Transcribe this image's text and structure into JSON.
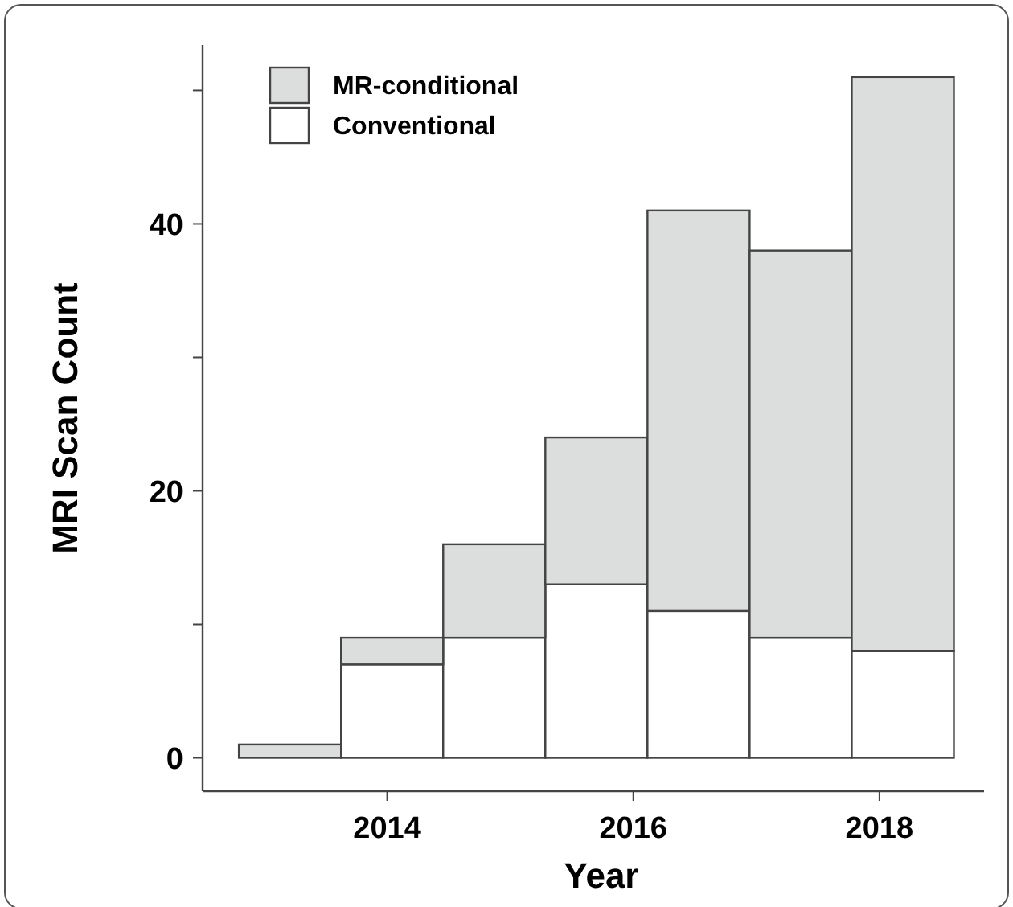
{
  "chart_data": {
    "type": "bar",
    "xlabel": "Year",
    "ylabel": "MRI Scan Count",
    "x": [
      2013.21,
      2014.04,
      2014.87,
      2015.7,
      2016.53,
      2017.36,
      2018.19
    ],
    "stacked": true,
    "series": [
      {
        "name": "Conventional",
        "color": "#ffffff",
        "values": [
          0,
          7,
          9,
          13,
          11,
          9,
          8
        ]
      },
      {
        "name": "MR-conditional",
        "color": "#dcdddd",
        "values": [
          1,
          2,
          7,
          11,
          30,
          29,
          43
        ]
      }
    ],
    "xlim": [
      2012.5,
      2018.85
    ],
    "xticks": [
      2014,
      2016,
      2018
    ],
    "ylim": [
      -2.5,
      53.4
    ],
    "yticks": [
      0,
      {
        "value": 10,
        "label": null
      },
      20,
      {
        "value": 30,
        "label": null
      },
      40,
      {
        "value": 50,
        "label": null
      }
    ],
    "grid": false,
    "legend": "top left"
  }
}
